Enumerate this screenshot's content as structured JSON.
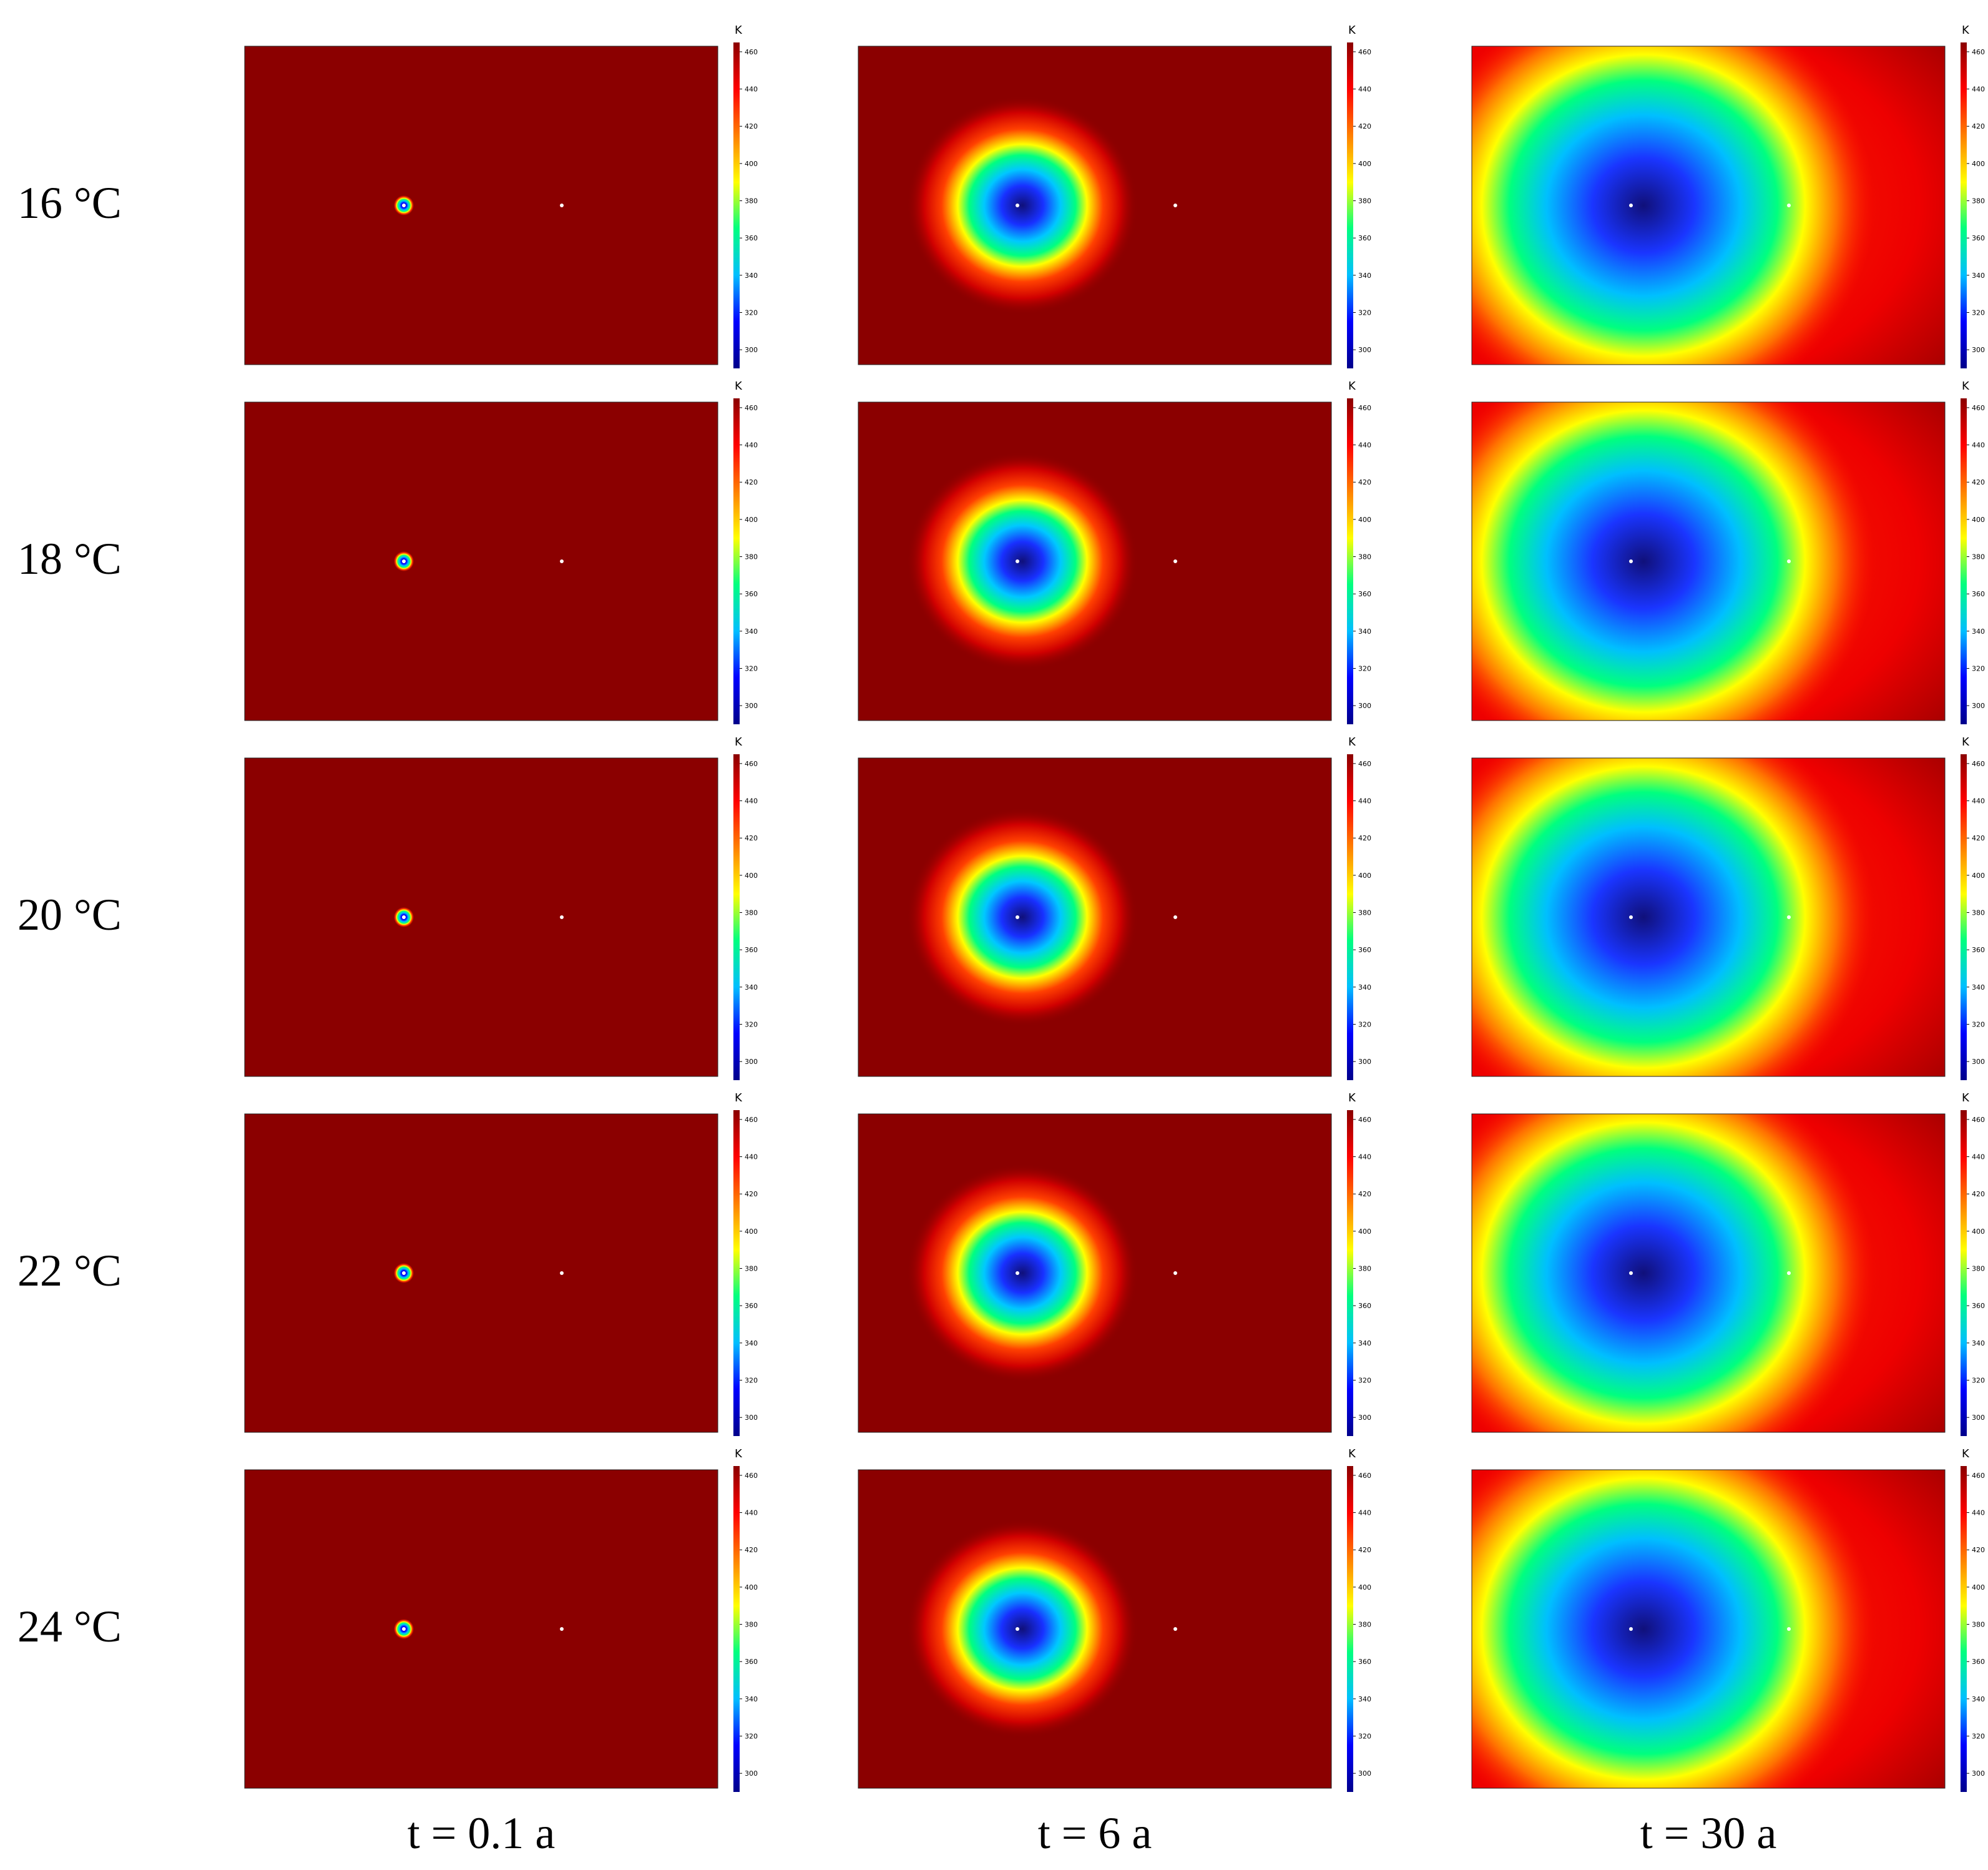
{
  "row_labels": [
    "16 °C",
    "18 °C",
    "20 °C",
    "22 °C",
    "24 °C"
  ],
  "col_labels": [
    "t = 0.1 a",
    "t = 6 a",
    "t = 30 a"
  ],
  "chart_data": {
    "type": "heatmap",
    "title": "",
    "rows": [
      "16 °C",
      "18 °C",
      "20 °C",
      "22 °C",
      "24 °C"
    ],
    "columns": [
      "t = 0.1 a",
      "t = 6 a",
      "t = 30 a"
    ],
    "colorbar": {
      "unit": "K",
      "ticks": [
        300,
        320,
        340,
        360,
        380,
        400,
        420,
        440,
        460
      ],
      "range": [
        290,
        465
      ],
      "colormap": [
        "#00008b",
        "#0000ff",
        "#00bfff",
        "#00ff7f",
        "#ffff00",
        "#ff8000",
        "#ff0000",
        "#8b0000"
      ]
    },
    "background_color": "#8b0000",
    "points_color": "#ffffff"
  }
}
